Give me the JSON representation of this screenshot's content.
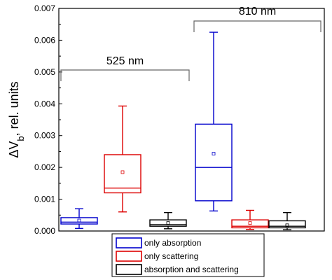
{
  "chart_data": {
    "type": "box",
    "ylabel": {
      "main": "ΔV",
      "sub": "b",
      "rest": ", rel. units"
    },
    "ylim": [
      0,
      0.007
    ],
    "yticks": [
      "0.000",
      "0.001",
      "0.002",
      "0.003",
      "0.004",
      "0.005",
      "0.006",
      "0.007"
    ],
    "grid": false,
    "groups": [
      {
        "label": "525 nm",
        "boxes": [
          0,
          1,
          2
        ]
      },
      {
        "label": "810 nm",
        "boxes": [
          3,
          4,
          5
        ]
      }
    ],
    "series": [
      {
        "name": "only absorption",
        "color": "#0000cc"
      },
      {
        "name": "only scattering",
        "color": "#dd0000"
      },
      {
        "name": "absorption and scattering",
        "color": "#000000"
      }
    ],
    "boxes": [
      {
        "series": 0,
        "whisker_low": 8e-05,
        "q1": 0.00022,
        "median": 0.00028,
        "q3": 0.00042,
        "whisker_high": 0.0007,
        "mean": 0.00033
      },
      {
        "series": 1,
        "whisker_low": 0.0006,
        "q1": 0.0012,
        "median": 0.00135,
        "q3": 0.0024,
        "whisker_high": 0.00393,
        "mean": 0.00185
      },
      {
        "series": 2,
        "whisker_low": 7e-05,
        "q1": 0.00015,
        "median": 0.0002,
        "q3": 0.00035,
        "whisker_high": 0.00058,
        "mean": 0.00025
      },
      {
        "series": 0,
        "whisker_low": 0.00063,
        "q1": 0.00095,
        "median": 0.002,
        "q3": 0.00336,
        "whisker_high": 0.00625,
        "mean": 0.00243
      },
      {
        "series": 1,
        "whisker_low": 5e-05,
        "q1": 0.0001,
        "median": 0.00015,
        "q3": 0.00035,
        "whisker_high": 0.00065,
        "mean": 0.00025
      },
      {
        "series": 2,
        "whisker_low": 4e-05,
        "q1": 0.0001,
        "median": 0.00015,
        "q3": 0.00032,
        "whisker_high": 0.00058,
        "mean": 0.00018
      }
    ],
    "legend": {
      "position": "bottom-center"
    }
  }
}
